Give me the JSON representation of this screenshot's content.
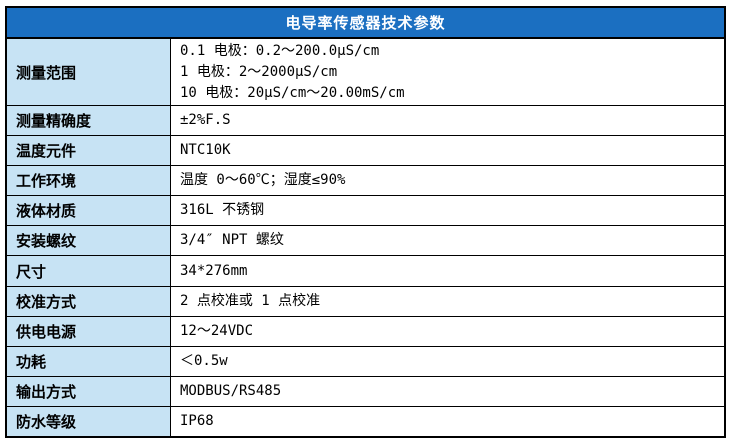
{
  "title": "电导率传感器技术参数",
  "colors": {
    "header_bg": "#1B6FC1",
    "header_text": "#FFFFFF",
    "label_bg": "#C7E3F4",
    "border": "#000000"
  },
  "rows": [
    {
      "label": "测量范围",
      "lines": [
        "0.1 电极：0.2～200.0μS/cm",
        "1 电极：2～2000μS/cm",
        "10 电极：20μS/cm～20.00mS/cm"
      ]
    },
    {
      "label": "测量精确度",
      "lines": [
        "±2%F.S"
      ]
    },
    {
      "label": "温度元件",
      "lines": [
        "NTC10K"
      ]
    },
    {
      "label": "工作环境",
      "lines": [
        "温度 0～60℃；湿度≤90%"
      ]
    },
    {
      "label": "液体材质",
      "lines": [
        "316L 不锈钢"
      ]
    },
    {
      "label": "安装螺纹",
      "lines": [
        "3/4″ NPT 螺纹"
      ]
    },
    {
      "label": "尺寸",
      "lines": [
        "34*276mm"
      ]
    },
    {
      "label": "校准方式",
      "lines": [
        "2 点校准或 1 点校准"
      ]
    },
    {
      "label": "供电电源",
      "lines": [
        "12～24VDC"
      ]
    },
    {
      "label": "功耗",
      "lines": [
        "＜0.5w"
      ]
    },
    {
      "label": "输出方式",
      "lines": [
        "MODBUS/RS485"
      ]
    },
    {
      "label": "防水等级",
      "lines": [
        "IP68"
      ]
    }
  ]
}
